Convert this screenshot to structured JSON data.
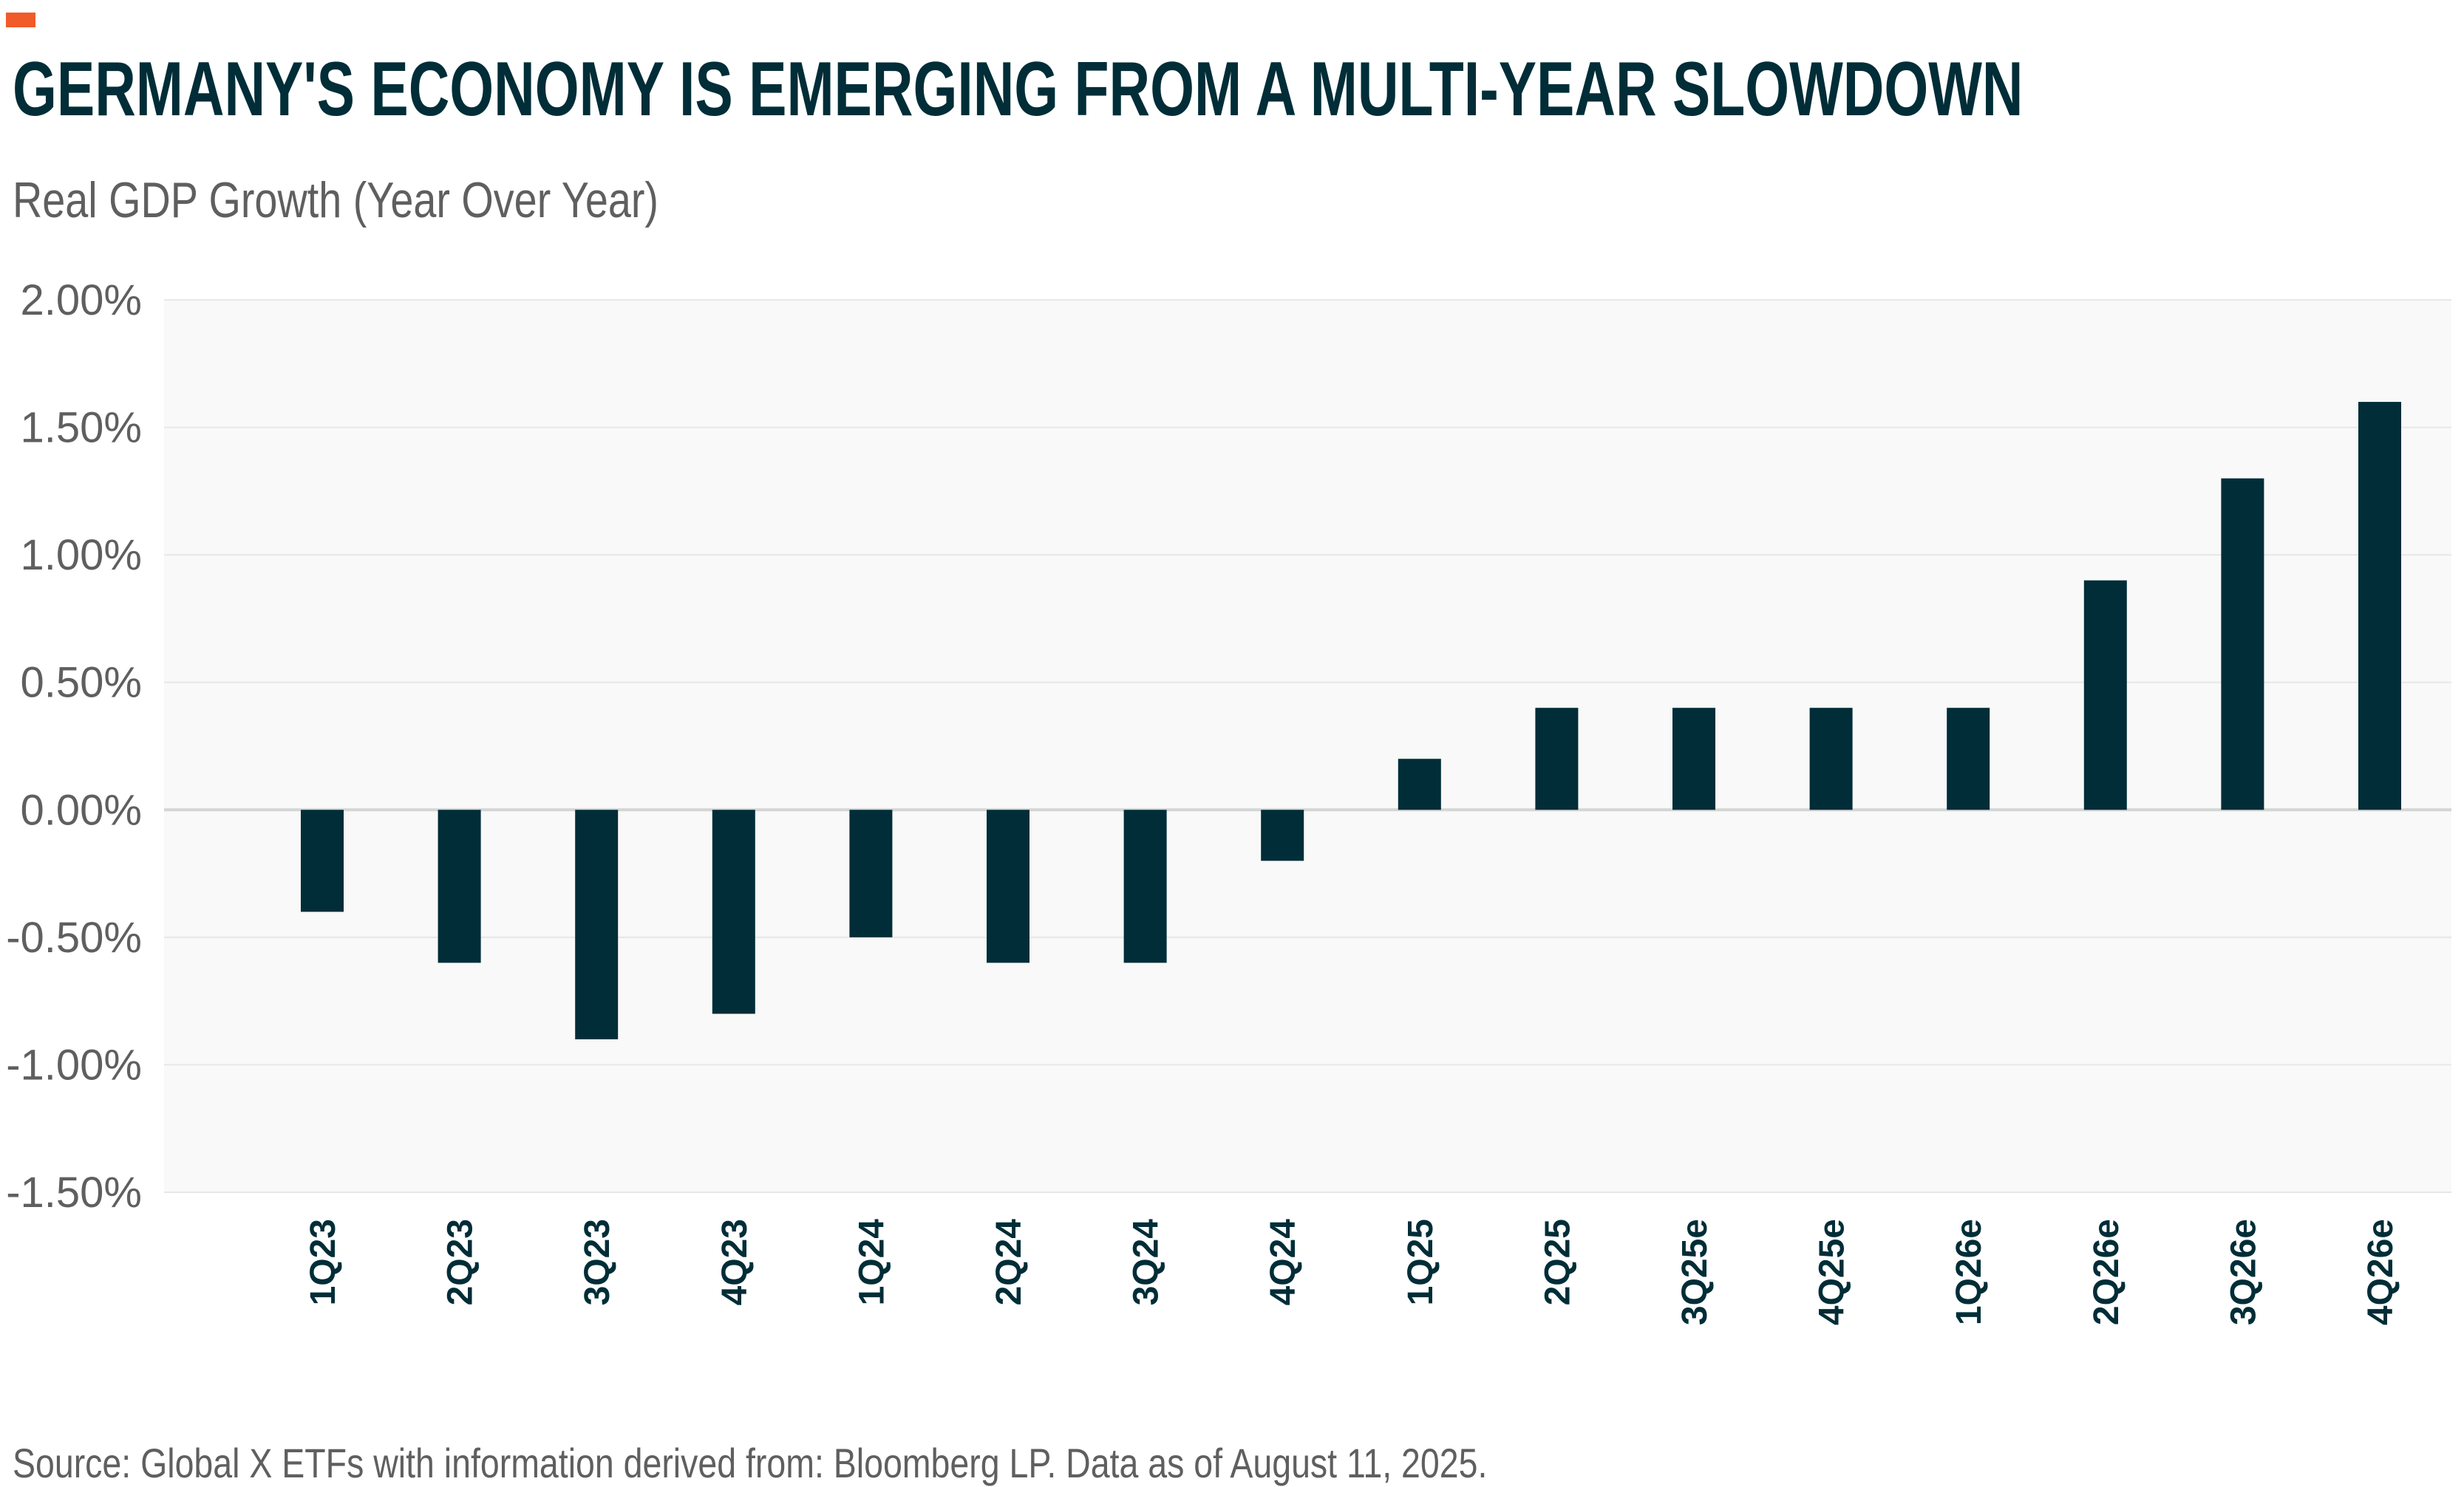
{
  "header": {
    "title": "GERMANY'S ECONOMY IS EMERGING FROM A MULTI-YEAR SLOWDOWN",
    "subtitle": "Real GDP Growth (Year Over Year)",
    "accent_color": "#f15a29"
  },
  "footer": {
    "source": "Source: Global X ETFs with information derived from: Bloomberg LP. Data as of August 11, 2025."
  },
  "chart_data": {
    "type": "bar",
    "title": "GERMANY'S ECONOMY IS EMERGING FROM A MULTI-YEAR SLOWDOWN",
    "subtitle": "Real GDP Growth (Year Over Year)",
    "categories": [
      "1Q23",
      "2Q23",
      "3Q23",
      "4Q23",
      "1Q24",
      "2Q24",
      "3Q24",
      "4Q24",
      "1Q25",
      "2Q25",
      "3Q25e",
      "4Q25e",
      "1Q26e",
      "2Q26e",
      "3Q26e",
      "4Q26e"
    ],
    "values": [
      -0.4,
      -0.6,
      -0.9,
      -0.8,
      -0.5,
      -0.6,
      -0.6,
      -0.2,
      0.2,
      0.4,
      0.4,
      0.4,
      0.4,
      0.9,
      1.3,
      1.6
    ],
    "unit": "%",
    "ylim": [
      -1.5,
      2.0
    ],
    "yticks": [
      2.0,
      1.5,
      1.0,
      0.5,
      0.0,
      -0.5,
      -1.0,
      -1.5
    ],
    "ytick_labels": [
      "2.00%",
      "1.50%",
      "1.00%",
      "0.50%",
      "0.00%",
      "-0.50%",
      "-1.00%",
      "-1.50%"
    ],
    "xlabel": "",
    "ylabel": "",
    "grid": true,
    "legend": "none",
    "bar_color": "#002d37",
    "plot_background": "#f8f9f8"
  }
}
